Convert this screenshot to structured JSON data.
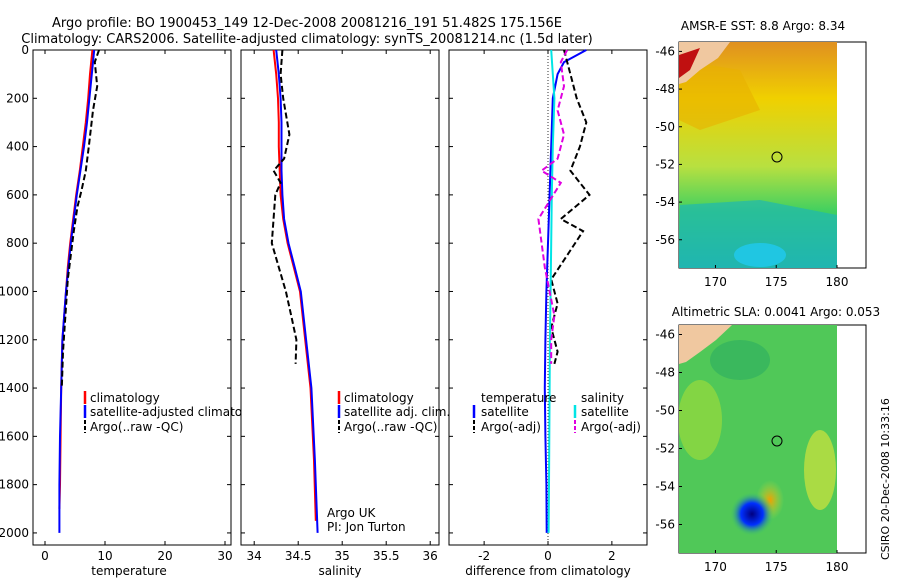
{
  "title_line1": "Argo profile: BO 1900453_149 12-Dec-2008 20081216_191 51.482S 175.156E",
  "title_line2": "Climatology: CARS2006. Satellite-adjusted climatology: synTS_20081214.nc (1.5d later)",
  "side_label": "CSIRO 20-Dec-2008 10:33:16",
  "colors": {
    "climatology": "#ff0000",
    "satellite": "#0000ff",
    "argo": "#000000",
    "salinity_satellite": "#00e5e5",
    "salinity_argo": "#e000e0"
  },
  "chart_data": [
    {
      "type": "line",
      "xlabel": "temperature",
      "ylabel": "",
      "xlim": [
        -2,
        31
      ],
      "ylim": [
        2050,
        0
      ],
      "xticks": [
        "0",
        "10",
        "20",
        "30"
      ],
      "xtick_values": [
        0,
        10,
        20,
        30
      ],
      "yticks": [
        "0",
        "200",
        "400",
        "600",
        "800",
        "1000",
        "1200",
        "1400",
        "1600",
        "1800",
        "2000"
      ],
      "ytick_values": [
        0,
        200,
        400,
        600,
        800,
        1000,
        1200,
        1400,
        1600,
        1800,
        2000
      ],
      "legend": [
        "climatology",
        "satellite-adjusted climatology",
        "Argo(..raw -QC)"
      ],
      "annotations": [],
      "series": [
        {
          "name": "climatology",
          "color": "#ff0000",
          "dash": "",
          "x": [
            7.9,
            7.5,
            7.2,
            6.8,
            6.3,
            5.8,
            5.2,
            4.7,
            4.2,
            3.8,
            3.5,
            3.2,
            2.9,
            2.7,
            2.6,
            2.5,
            2.4
          ],
          "y": [
            0,
            100,
            200,
            300,
            400,
            500,
            600,
            700,
            800,
            900,
            1000,
            1100,
            1200,
            1400,
            1600,
            1800,
            1900
          ]
        },
        {
          "name": "satellite-adjusted climatology",
          "color": "#0000ff",
          "dash": "",
          "x": [
            8.2,
            7.8,
            7.4,
            7.0,
            6.5,
            5.9,
            5.3,
            4.8,
            4.3,
            3.9,
            3.5,
            3.2,
            2.9,
            2.7,
            2.5,
            2.4,
            2.4
          ],
          "y": [
            0,
            100,
            200,
            300,
            400,
            500,
            600,
            700,
            800,
            900,
            1000,
            1100,
            1200,
            1400,
            1600,
            1800,
            2000
          ]
        },
        {
          "name": "Argo(..raw -QC)",
          "color": "#000000",
          "dash": "6,3",
          "x": [
            9.0,
            8.3,
            8.7,
            8.0,
            7.3,
            6.8,
            6.1,
            5.4,
            4.8,
            4.3,
            3.8,
            3.4,
            3.0,
            2.8
          ],
          "y": [
            0,
            50,
            150,
            250,
            400,
            500,
            580,
            650,
            750,
            850,
            950,
            1100,
            1250,
            1400
          ]
        }
      ]
    },
    {
      "type": "line",
      "xlabel": "salinity",
      "ylabel": "",
      "xlim": [
        33.85,
        36.1
      ],
      "ylim": [
        2050,
        0
      ],
      "xticks": [
        "34",
        "34.5",
        "35",
        "35.5",
        "36"
      ],
      "xtick_values": [
        34,
        34.5,
        35,
        35.5,
        36
      ],
      "legend": [
        "climatology",
        "satellite adj. clim.",
        "Argo(..raw -QC)"
      ],
      "annotations": [
        "Argo UK",
        "PI: Jon Turton"
      ],
      "series": [
        {
          "name": "climatology",
          "color": "#ff0000",
          "dash": "",
          "x": [
            34.22,
            34.25,
            34.27,
            34.28,
            34.28,
            34.29,
            34.3,
            34.33,
            34.38,
            34.45,
            34.52,
            34.58,
            34.64,
            34.68,
            34.7
          ],
          "y": [
            0,
            100,
            200,
            300,
            400,
            500,
            600,
            700,
            800,
            900,
            1000,
            1200,
            1400,
            1700,
            1950
          ]
        },
        {
          "name": "satellite adj. clim.",
          "color": "#0000ff",
          "dash": "",
          "x": [
            34.25,
            34.28,
            34.3,
            34.31,
            34.31,
            34.31,
            34.32,
            34.34,
            34.39,
            34.46,
            34.53,
            34.59,
            34.65,
            34.69,
            34.72
          ],
          "y": [
            0,
            100,
            200,
            300,
            400,
            500,
            600,
            700,
            800,
            900,
            1000,
            1200,
            1400,
            1700,
            2000
          ]
        },
        {
          "name": "Argo(..raw -QC)",
          "color": "#000000",
          "dash": "6,3",
          "x": [
            34.32,
            34.3,
            34.33,
            34.4,
            34.34,
            34.22,
            34.3,
            34.24,
            34.2,
            34.28,
            34.36,
            34.42,
            34.48,
            34.47
          ],
          "y": [
            0,
            100,
            200,
            350,
            450,
            500,
            550,
            600,
            800,
            900,
            1000,
            1100,
            1200,
            1300
          ]
        }
      ]
    },
    {
      "type": "line",
      "xlabel": "difference from climatology",
      "ylabel": "",
      "xlim": [
        -3.1,
        3.1
      ],
      "ylim": [
        2050,
        0
      ],
      "xticks": [
        "-2",
        "0",
        "2"
      ],
      "xtick_values": [
        -2,
        0,
        2
      ],
      "legend_headers": [
        "temperature",
        "salinity"
      ],
      "legend": [
        "satellite",
        "Argo(-adj)",
        "satellite",
        "Argo(-adj)"
      ],
      "annotations": [],
      "series": [
        {
          "name": "satellite",
          "color": "#0000ff",
          "dash": "",
          "x": [
            1.2,
            0.5,
            0.3,
            0.15,
            0.1,
            0.05,
            0.0,
            -0.05,
            -0.08,
            -0.1,
            -0.08,
            -0.05,
            -0.04
          ],
          "y": [
            0,
            50,
            100,
            200,
            400,
            600,
            800,
            1000,
            1200,
            1400,
            1600,
            1800,
            2000
          ]
        },
        {
          "name": "Argo(-adj)",
          "color": "#000000",
          "dash": "6,3",
          "x": [
            0.5,
            0.7,
            0.9,
            1.2,
            1.0,
            0.7,
            1.3,
            0.4,
            1.1,
            0.6,
            0.1,
            0.3,
            0.1,
            0.3,
            0.2
          ],
          "y": [
            0,
            100,
            200,
            300,
            400,
            500,
            600,
            700,
            750,
            850,
            950,
            1050,
            1150,
            1250,
            1300
          ]
        },
        {
          "name": "satellite",
          "color": "#00e5e5",
          "dash": "",
          "x": [
            0.1,
            0.15,
            0.2,
            0.15,
            0.12,
            0.1,
            0.08,
            0.06,
            0.05,
            0.04,
            0.03,
            0.02
          ],
          "y": [
            0,
            100,
            200,
            400,
            600,
            800,
            1000,
            1200,
            1400,
            1600,
            1800,
            2000
          ]
        },
        {
          "name": "Argo(-adj)",
          "color": "#e000e0",
          "dash": "6,3",
          "x": [
            0.6,
            0.4,
            0.5,
            0.3,
            0.5,
            0.3,
            -0.2,
            0.4,
            -0.3,
            -0.1,
            0.2,
            0.1,
            0.1
          ],
          "y": [
            0,
            50,
            150,
            250,
            350,
            450,
            500,
            550,
            700,
            900,
            1100,
            1200,
            1300
          ]
        }
      ]
    },
    {
      "type": "heatmap",
      "title": "AMSR-E SST: 8.8 Argo: 8.34",
      "xlabel": "",
      "ylabel": "",
      "xlim": [
        167,
        183
      ],
      "ylim": [
        -57.5,
        -45.5
      ],
      "xticks": [
        "170",
        "175",
        "180"
      ],
      "xtick_values": [
        170,
        175,
        180
      ],
      "yticks": [
        "-46",
        "-48",
        "-50",
        "-52",
        "-54",
        "-56"
      ],
      "ytick_values": [
        -46,
        -48,
        -50,
        -52,
        -54,
        -56
      ],
      "marker": {
        "lon": 175.156,
        "lat": -51.482
      }
    },
    {
      "type": "heatmap",
      "title": "Altimetric SLA: 0.0041 Argo: 0.053",
      "xlabel": "",
      "ylabel": "",
      "xlim": [
        167,
        183
      ],
      "ylim": [
        -57.5,
        -45.5
      ],
      "xticks": [
        "170",
        "175",
        "180"
      ],
      "xtick_values": [
        170,
        175,
        180
      ],
      "yticks": [
        "-46",
        "-48",
        "-50",
        "-52",
        "-54",
        "-56"
      ],
      "ytick_values": [
        -46,
        -48,
        -50,
        -52,
        -54,
        -56
      ],
      "marker": {
        "lon": 175.156,
        "lat": -51.482
      }
    }
  ]
}
